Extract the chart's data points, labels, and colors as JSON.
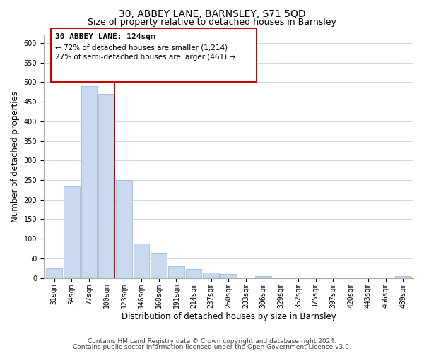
{
  "title": "30, ABBEY LANE, BARNSLEY, S71 5QD",
  "subtitle": "Size of property relative to detached houses in Barnsley",
  "xlabel": "Distribution of detached houses by size in Barnsley",
  "ylabel": "Number of detached properties",
  "bin_labels": [
    "31sqm",
    "54sqm",
    "77sqm",
    "100sqm",
    "123sqm",
    "146sqm",
    "168sqm",
    "191sqm",
    "214sqm",
    "237sqm",
    "260sqm",
    "283sqm",
    "306sqm",
    "329sqm",
    "352sqm",
    "375sqm",
    "397sqm",
    "420sqm",
    "443sqm",
    "466sqm",
    "489sqm"
  ],
  "bar_values": [
    25,
    233,
    490,
    470,
    250,
    88,
    63,
    30,
    22,
    13,
    10,
    0,
    5,
    0,
    0,
    0,
    0,
    0,
    0,
    0,
    5
  ],
  "bar_color": "#c8d9f0",
  "bar_edge_color": "#a0b8d8",
  "highlight_color": "#cc0000",
  "property_line_index": 3,
  "annotation_text_line1": "30 ABBEY LANE: 124sqm",
  "annotation_text_line2": "← 72% of detached houses are smaller (1,214)",
  "annotation_text_line3": "27% of semi-detached houses are larger (461) →",
  "ylim": [
    0,
    620
  ],
  "yticks": [
    0,
    50,
    100,
    150,
    200,
    250,
    300,
    350,
    400,
    450,
    500,
    550,
    600
  ],
  "footer_line1": "Contains HM Land Registry data © Crown copyright and database right 2024.",
  "footer_line2": "Contains public sector information licensed under the Open Government Licence v3.0.",
  "bg_color": "#ffffff",
  "grid_color": "#d0d8e8",
  "title_fontsize": 10,
  "subtitle_fontsize": 9,
  "axis_label_fontsize": 8.5,
  "tick_fontsize": 7,
  "annotation_fontsize_bold": 8,
  "annotation_fontsize": 7.5,
  "footer_fontsize": 6.5
}
